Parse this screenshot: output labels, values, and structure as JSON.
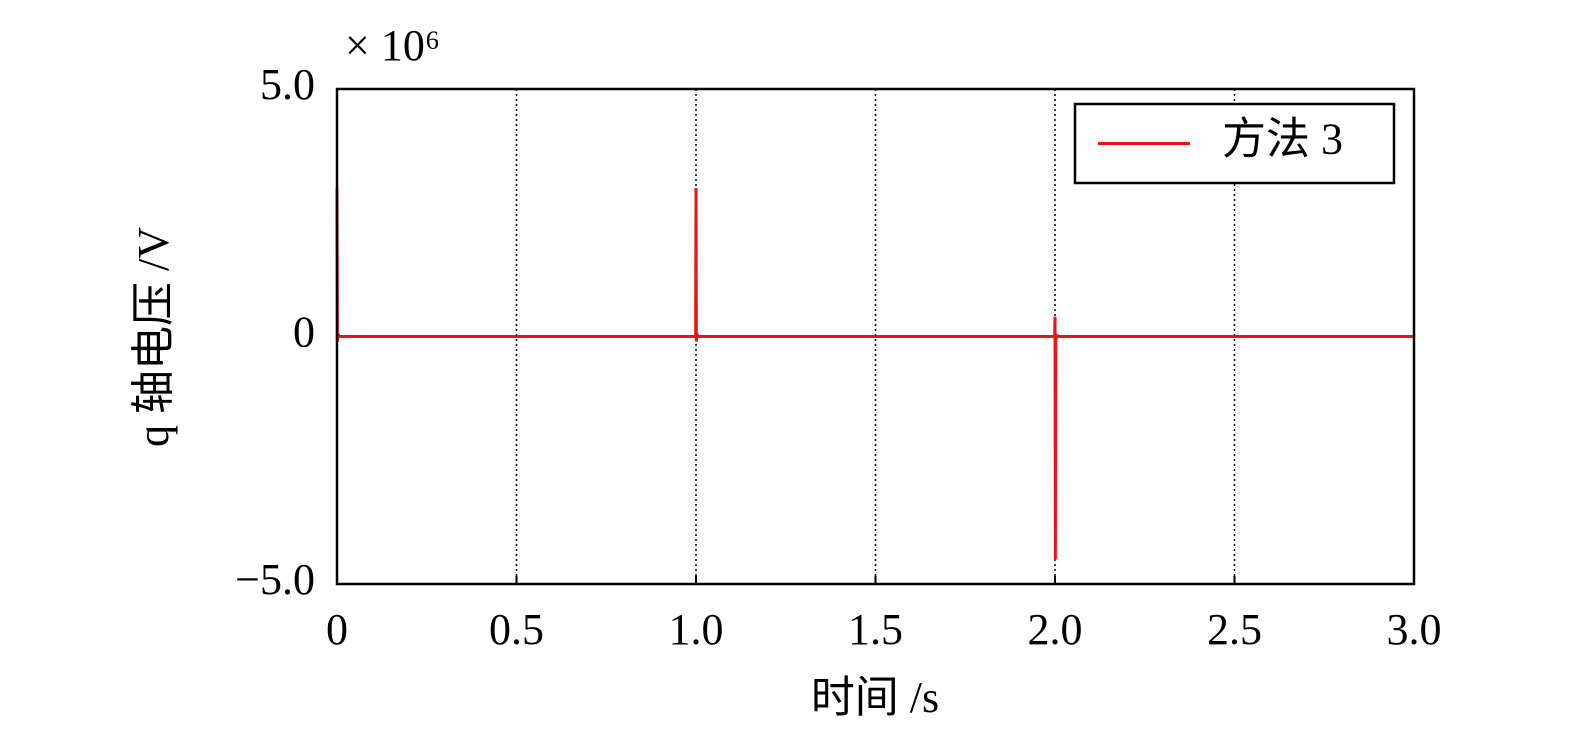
{
  "chart_data": {
    "type": "line",
    "ylabel": "q 轴电压 /V",
    "xlabel": "时间 /s",
    "multiplier": "× 10⁶",
    "x": [
      0,
      0.001,
      0.003,
      0.006,
      0.01,
      0.999,
      1.0,
      1.001,
      1.003,
      1.006,
      1.01,
      1.999,
      2.0,
      2.001,
      2.002,
      2.004,
      2.01,
      3.0
    ],
    "series": [
      {
        "name": "方法 3",
        "color": "#e8141b",
        "values": [
          3.0,
          -0.1,
          0.05,
          0,
          0,
          0,
          3.0,
          -0.1,
          0.05,
          0,
          0,
          0,
          0.4,
          -4.5,
          -0.1,
          0.02,
          0,
          0
        ]
      }
    ],
    "xlim": [
      0,
      3
    ],
    "xticks": [
      0,
      0.5,
      {
        "value": 1,
        "label": "1.0"
      },
      1.5,
      {
        "value": 2,
        "label": "2.0"
      },
      2.5,
      {
        "value": 3,
        "label": "3.0"
      }
    ],
    "ylim": [
      -5,
      5
    ],
    "yticks": [
      {
        "value": -5,
        "label": "−5.0"
      },
      0,
      {
        "value": 5,
        "label": "5.0"
      }
    ],
    "grid": "x",
    "legend": "upper right"
  }
}
